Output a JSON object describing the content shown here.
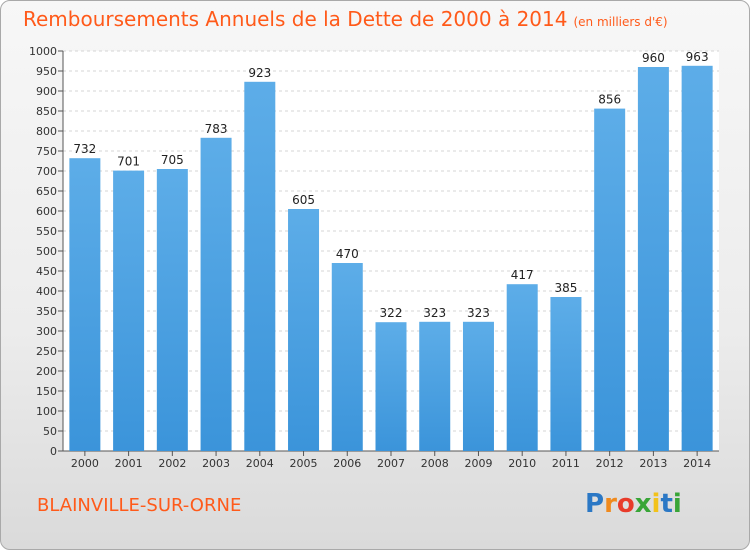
{
  "chart_data": {
    "type": "bar",
    "title": "Remboursements Annuels de la Dette de 2000 à 2014",
    "subtitle": "(en milliers d'€)",
    "categories": [
      "2000",
      "2001",
      "2002",
      "2003",
      "2004",
      "2005",
      "2006",
      "2007",
      "2008",
      "2009",
      "2010",
      "2011",
      "2012",
      "2013",
      "2014"
    ],
    "values": [
      732,
      701,
      705,
      783,
      923,
      605,
      470,
      322,
      323,
      323,
      417,
      385,
      856,
      960,
      963
    ],
    "ylim": [
      0,
      1000
    ],
    "ytick_step": 50,
    "grid": true,
    "xlabel": "",
    "ylabel": "",
    "bar_color": "#3b94da",
    "bar_color_light": "#5dade8",
    "text_color": "#ff5a1a"
  },
  "footer": {
    "commune": "BLAINVILLE-SUR-ORNE",
    "logo": "Proxiti"
  }
}
